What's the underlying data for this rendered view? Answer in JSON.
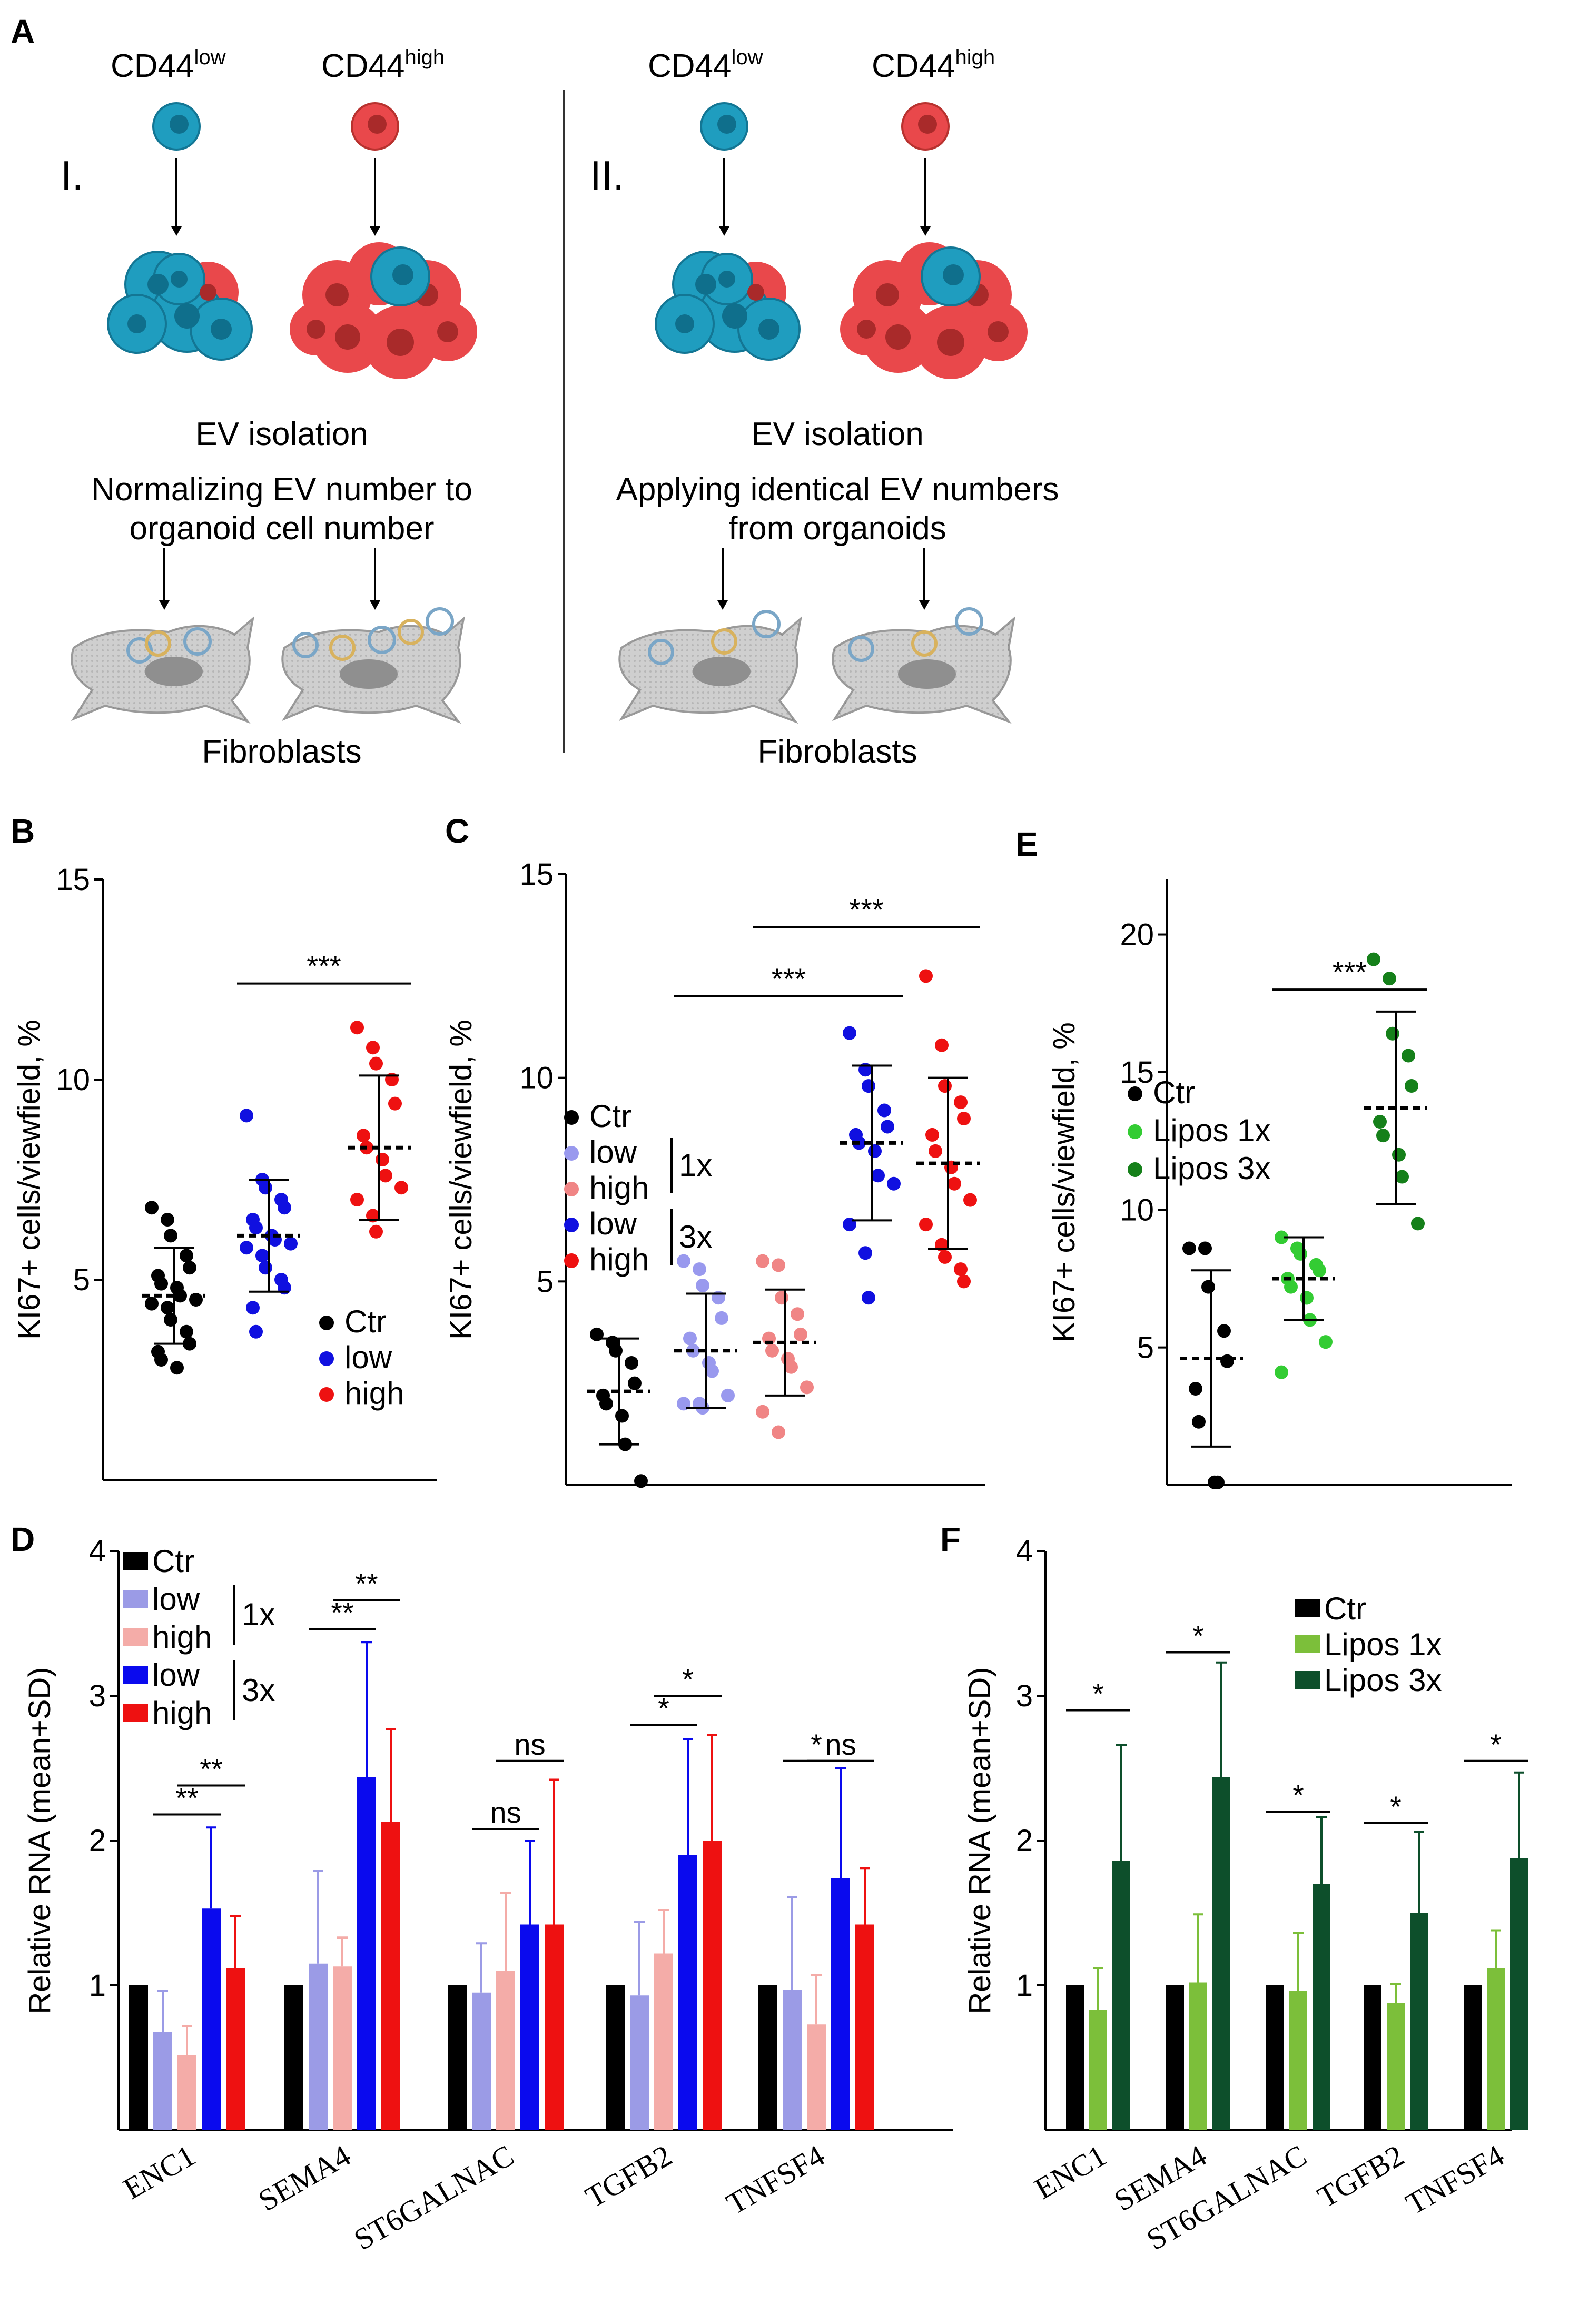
{
  "panel_A": {
    "letter": "A",
    "left": {
      "roman": "I.",
      "low_label": "CD44",
      "low_sup": "low",
      "high_label": "CD44",
      "high_sup": "high",
      "ev": "EV isolation",
      "step1": "Normalizing EV number to",
      "step2": "organoid cell number",
      "fibro": "Fibroblasts"
    },
    "right": {
      "roman": "II.",
      "low_label": "CD44",
      "low_sup": "low",
      "high_label": "CD44",
      "high_sup": "high",
      "ev": "EV isolation",
      "step1": "Applying identical EV numbers",
      "step2": "from organoids",
      "fibro": "Fibroblasts"
    },
    "colors": {
      "low_cell": "#1f9dbf",
      "high_cell": "#e9484b",
      "fibroblast": "#cfcfcf"
    }
  },
  "chart_data": [
    {
      "id": "B",
      "type": "scatter",
      "letter": "B",
      "ylabel": "KI67+ cells/viewfield, %",
      "ylim": [
        0,
        15
      ],
      "yticks": [
        5,
        10,
        15
      ],
      "groups": [
        {
          "name": "Ctr",
          "color": "#000000",
          "mean": 4.6,
          "sd": 1.2,
          "points": [
            6.8,
            6.5,
            6.1,
            5.6,
            5.3,
            5.1,
            4.9,
            4.8,
            4.6,
            4.5,
            4.4,
            4.3,
            4.0,
            3.7,
            3.4,
            3.2,
            3.0,
            2.8
          ]
        },
        {
          "name": "low",
          "color": "#1010e0",
          "mean": 6.1,
          "sd": 1.4,
          "points": [
            9.1,
            7.5,
            7.3,
            7.0,
            6.8,
            6.5,
            6.3,
            6.1,
            6.0,
            5.9,
            5.8,
            5.6,
            5.3,
            5.0,
            4.8,
            4.3,
            3.7
          ]
        },
        {
          "name": "high",
          "color": "#ee1111",
          "mean": 8.3,
          "sd": 1.8,
          "points": [
            11.3,
            10.8,
            10.4,
            10.0,
            9.4,
            8.6,
            8.3,
            8.0,
            7.6,
            7.3,
            7.0,
            6.6,
            6.2
          ]
        }
      ],
      "legend": [
        "Ctr",
        "low",
        "high"
      ],
      "sig": [
        {
          "label": "***",
          "from": 1,
          "to": 2,
          "y": 12.4
        }
      ]
    },
    {
      "id": "C",
      "type": "scatter",
      "letter": "C",
      "ylabel": "KI67+ cells/viewfield, %",
      "ylim": [
        0,
        15
      ],
      "yticks": [
        5,
        10,
        15
      ],
      "groups": [
        {
          "name": "Ctr",
          "color": "#000000",
          "mean": 2.3,
          "sd": 1.3,
          "points": [
            3.7,
            3.5,
            3.3,
            3.0,
            2.5,
            2.2,
            2.0,
            1.7,
            1.0,
            0.1
          ]
        },
        {
          "name": "low 1x",
          "color": "#9999ee",
          "mean": 3.3,
          "sd": 1.4,
          "points": [
            5.5,
            5.3,
            4.9,
            4.6,
            4.1,
            3.6,
            3.3,
            3.0,
            2.8,
            2.2,
            2.0,
            2.0,
            1.9
          ]
        },
        {
          "name": "high 1x",
          "color": "#f08585",
          "mean": 3.5,
          "sd": 1.3,
          "points": [
            5.5,
            5.4,
            4.6,
            4.2,
            3.7,
            3.6,
            3.3,
            3.1,
            2.9,
            2.4,
            1.8,
            1.3
          ]
        },
        {
          "name": "low 3x",
          "color": "#1010e0",
          "mean": 8.4,
          "sd": 1.9,
          "points": [
            11.1,
            10.2,
            9.8,
            9.2,
            8.8,
            8.6,
            8.4,
            8.2,
            7.6,
            7.4,
            6.4,
            5.7,
            4.6
          ]
        },
        {
          "name": "high 3x",
          "color": "#ee1111",
          "mean": 7.9,
          "sd": 2.1,
          "points": [
            12.5,
            10.8,
            9.8,
            9.4,
            9.0,
            8.6,
            8.2,
            7.8,
            7.4,
            7.0,
            6.4,
            5.9,
            5.6,
            5.3,
            5.0
          ]
        }
      ],
      "legend": [
        "Ctr",
        "low",
        "high",
        "low",
        "high"
      ],
      "legend_groups": [
        "1x",
        "3x"
      ],
      "sig": [
        {
          "label": "***",
          "from": 1,
          "to": 3,
          "y": 12.0
        },
        {
          "label": "***",
          "from": 2,
          "to": 4,
          "y": 13.7
        }
      ]
    },
    {
      "id": "E",
      "type": "scatter",
      "letter": "E",
      "ylabel": "KI67+ cells/viewfield, %",
      "ylim": [
        0,
        22
      ],
      "yticks": [
        5,
        10,
        15,
        20
      ],
      "groups": [
        {
          "name": "Ctr",
          "color": "#000000",
          "mean": 4.6,
          "sd": 3.2,
          "points": [
            8.6,
            8.6,
            7.2,
            5.6,
            4.5,
            3.5,
            2.3,
            0.1,
            0.1
          ]
        },
        {
          "name": "Lipos 1x",
          "color": "#33cc33",
          "mean": 7.5,
          "sd": 1.5,
          "points": [
            9.0,
            8.6,
            8.4,
            8.0,
            7.8,
            7.5,
            7.2,
            6.8,
            6.0,
            5.2,
            4.1
          ]
        },
        {
          "name": "Lipos 3x",
          "color": "#15801a",
          "mean": 13.7,
          "sd": 3.5,
          "points": [
            19.1,
            18.4,
            16.4,
            15.6,
            14.5,
            13.2,
            12.7,
            12.0,
            11.2,
            9.5
          ]
        }
      ],
      "legend": [
        "Ctr",
        "Lipos 1x",
        "Lipos 3x"
      ],
      "sig": [
        {
          "label": "***",
          "from": 1,
          "to": 2,
          "y": 18.0
        }
      ]
    },
    {
      "id": "D",
      "type": "bar",
      "letter": "D",
      "ylabel": "Relative RNA (mean+SD)",
      "ylim": [
        0,
        4
      ],
      "yticks": [
        1,
        2,
        3,
        4
      ],
      "categories": [
        "ENC1",
        "SEMA4",
        "ST6GALNAC",
        "TGFB2",
        "TNFSF4"
      ],
      "series": [
        {
          "name": "Ctr",
          "color": "#000000",
          "values": [
            1.0,
            1.0,
            1.0,
            1.0,
            1.0
          ],
          "sd": [
            0,
            0,
            0,
            0,
            0
          ]
        },
        {
          "name": "low 1x",
          "color": "#9b9be6",
          "values": [
            0.68,
            1.15,
            0.95,
            0.93,
            0.97
          ],
          "sd": [
            0.28,
            0.64,
            0.34,
            0.51,
            0.64
          ]
        },
        {
          "name": "high 1x",
          "color": "#f4aca8",
          "values": [
            0.52,
            1.13,
            1.1,
            1.22,
            0.73
          ],
          "sd": [
            0.2,
            0.2,
            0.54,
            0.3,
            0.34
          ]
        },
        {
          "name": "low 3x",
          "color": "#0a0aee",
          "values": [
            1.53,
            2.44,
            1.42,
            1.9,
            1.74
          ],
          "sd": [
            0.56,
            0.93,
            0.58,
            0.8,
            0.76
          ]
        },
        {
          "name": "high 3x",
          "color": "#ee1111",
          "values": [
            1.12,
            2.13,
            1.42,
            2.0,
            1.42
          ],
          "sd": [
            0.36,
            0.64,
            1.0,
            0.73,
            0.39
          ]
        }
      ],
      "legend": [
        "Ctr",
        "low",
        "high",
        "low",
        "high"
      ],
      "legend_groups": [
        "1x",
        "3x"
      ],
      "sig": [
        {
          "label": "**",
          "cat": 0,
          "from": 1,
          "to": 3,
          "y": 2.18
        },
        {
          "label": "**",
          "cat": 0,
          "from": 2,
          "to": 4,
          "y": 2.38
        },
        {
          "label": "**",
          "cat": 1,
          "from": 1,
          "to": 3,
          "y": 3.46
        },
        {
          "label": "**",
          "cat": 1,
          "from": 2,
          "to": 4,
          "y": 3.66
        },
        {
          "label": "ns",
          "cat": 2,
          "from": 1,
          "to": 3,
          "y": 2.08
        },
        {
          "label": "ns",
          "cat": 2,
          "from": 2,
          "to": 4,
          "y": 2.55
        },
        {
          "label": "*",
          "cat": 3,
          "from": 1,
          "to": 3,
          "y": 2.8
        },
        {
          "label": "*",
          "cat": 3,
          "from": 2,
          "to": 4,
          "y": 3.0
        },
        {
          "label": "*",
          "cat": 4,
          "from": 1,
          "to": 3,
          "y": 2.55
        },
        {
          "label": "ns",
          "cat": 4,
          "from": 2,
          "to": 4,
          "y": 2.55
        }
      ]
    },
    {
      "id": "F",
      "type": "bar",
      "letter": "F",
      "ylabel": "Relative RNA (mean+SD)",
      "ylim": [
        0,
        4
      ],
      "yticks": [
        1,
        2,
        3,
        4
      ],
      "categories": [
        "ENC1",
        "SEMA4",
        "ST6GALNAC",
        "TGFB2",
        "TNFSF4"
      ],
      "series": [
        {
          "name": "Ctr",
          "color": "#000000",
          "values": [
            1.0,
            1.0,
            1.0,
            1.0,
            1.0
          ],
          "sd": [
            0,
            0,
            0,
            0,
            0
          ]
        },
        {
          "name": "Lipos 1x",
          "color": "#7cbf3a",
          "values": [
            0.83,
            1.02,
            0.96,
            0.88,
            1.12
          ],
          "sd": [
            0.29,
            0.47,
            0.4,
            0.13,
            0.26
          ]
        },
        {
          "name": "Lipos 3x",
          "color": "#0d4f2b",
          "values": [
            1.86,
            2.44,
            1.7,
            1.5,
            1.88
          ],
          "sd": [
            0.8,
            0.79,
            0.46,
            0.56,
            0.59
          ]
        }
      ],
      "legend": [
        "Ctr",
        "Lipos 1x",
        "Lipos 3x"
      ],
      "sig": [
        {
          "label": "*",
          "cat": 0,
          "from": 0,
          "to": 2,
          "y": 2.9
        },
        {
          "label": "*",
          "cat": 1,
          "from": 0,
          "to": 2,
          "y": 3.3
        },
        {
          "label": "*",
          "cat": 2,
          "from": 0,
          "to": 2,
          "y": 2.2
        },
        {
          "label": "*",
          "cat": 3,
          "from": 0,
          "to": 2,
          "y": 2.12
        },
        {
          "label": "*",
          "cat": 4,
          "from": 0,
          "to": 2,
          "y": 2.55
        }
      ]
    }
  ]
}
